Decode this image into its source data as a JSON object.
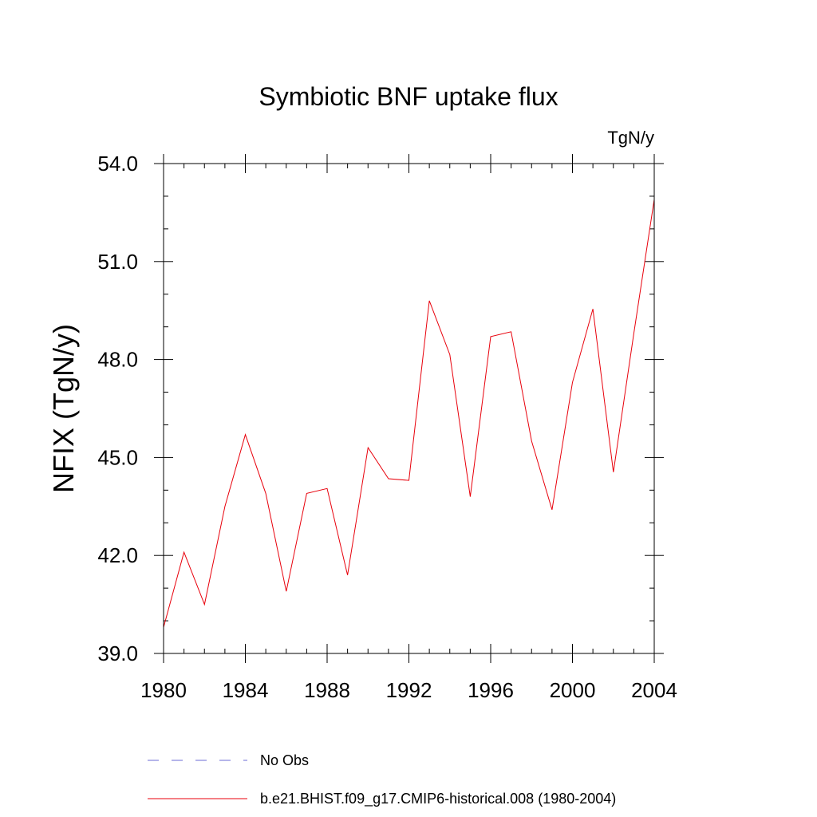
{
  "chart_data": {
    "type": "line",
    "title": "Symbiotic BNF uptake flux",
    "units_label": "TgN/y",
    "ylabel": "NFIX  (TgN/y)",
    "xlabel": "",
    "xlim": [
      1980,
      2004
    ],
    "ylim": [
      39.0,
      54.0
    ],
    "x_ticks": [
      "1980",
      "1984",
      "1988",
      "1992",
      "1996",
      "2000",
      "2004"
    ],
    "y_ticks": [
      "39.0",
      "42.0",
      "45.0",
      "48.0",
      "51.0",
      "54.0"
    ],
    "grid": false,
    "legend_position": "bottom",
    "series": [
      {
        "name": "b.e21.BHIST.f09_g17.CMIP6-historical.008 (1980-2004)",
        "color": "#e8000b",
        "style": "solid",
        "x": [
          1980,
          1981,
          1982,
          1983,
          1984,
          1985,
          1986,
          1987,
          1988,
          1989,
          1990,
          1991,
          1992,
          1993,
          1994,
          1995,
          1996,
          1997,
          1998,
          1999,
          2000,
          2001,
          2002,
          2003,
          2004
        ],
        "y": [
          39.8,
          42.1,
          40.5,
          43.5,
          45.7,
          43.9,
          40.9,
          43.9,
          44.05,
          41.4,
          45.3,
          44.35,
          44.3,
          49.8,
          48.15,
          43.8,
          48.7,
          48.85,
          45.5,
          43.4,
          47.3,
          49.55,
          44.55,
          48.8,
          52.9
        ]
      }
    ],
    "legend": [
      {
        "label": "No Obs",
        "color": "#6b6bd6",
        "style": "dashed"
      },
      {
        "label": "b.e21.BHIST.f09_g17.CMIP6-historical.008 (1980-2004)",
        "color": "#e8000b",
        "style": "solid"
      }
    ]
  }
}
